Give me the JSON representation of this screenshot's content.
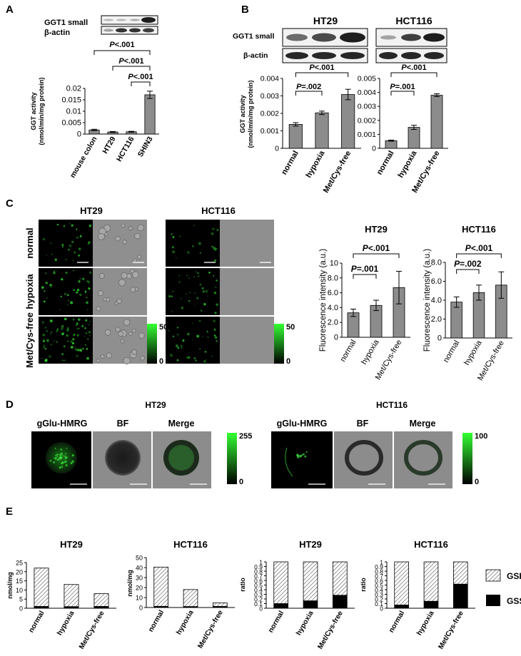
{
  "panels": {
    "A": "A",
    "B": "B",
    "C": "C",
    "D": "D",
    "E": "E"
  },
  "panel_A": {
    "blot_labels": [
      "GGT1 small",
      "β-actin"
    ],
    "pvalues": [
      "P<.001",
      "P<.001",
      "P<.001"
    ]
  },
  "panel_B": {
    "cell_lines": [
      "HT29",
      "HCT116"
    ],
    "blot_labels": [
      "GGT1 small",
      "β-actin"
    ],
    "pvalues_ht29": [
      "P<.001",
      "P=.002"
    ],
    "pvalues_hct116": [
      "P<.001",
      "P=.001"
    ]
  },
  "panel_C": {
    "titles": [
      "HT29",
      "HCT116"
    ],
    "row_labels": [
      "normal",
      "hypoxia",
      "Met/Cys-free"
    ],
    "scale_max": "50",
    "scale_min": "0",
    "chart_titles": [
      "HT29",
      "HCT116"
    ],
    "pvalues_ht29": [
      "P<.001",
      "P=.001"
    ],
    "pvalues_hct116": [
      "P<.001",
      "P=.002"
    ]
  },
  "panel_D": {
    "titles": [
      "HT29",
      "HCT116"
    ],
    "column_labels": [
      "gGlu-HMRG",
      "BF",
      "Merge"
    ],
    "scale_max_ht29": "255",
    "scale_max_hct116": "100",
    "scale_min": "0"
  },
  "panel_E": {
    "legend": [
      "GSH",
      "GSSG"
    ]
  },
  "colors": {
    "bar": "#8c8c8c",
    "gssg": "#000000",
    "fluorescence": "#33ff33"
  },
  "chart_data": [
    {
      "id": "A",
      "type": "bar",
      "categories": [
        "mouse colon",
        "HT29",
        "HCT116",
        "SHIN3"
      ],
      "values": [
        0.0018,
        0.0009,
        0.001,
        0.0172
      ],
      "errors": [
        0.0003,
        0.0002,
        0.0002,
        0.0016
      ],
      "ylabel": "GGT activity (nmol/min/mg protein)",
      "ylim": [
        0,
        0.02
      ],
      "yticks": [
        "0",
        "0.005",
        "0.01",
        "0.015",
        "0.02"
      ]
    },
    {
      "id": "B-HT29",
      "type": "bar",
      "categories": [
        "normal",
        "hypoxia",
        "Met/Cys-free"
      ],
      "values": [
        0.00137,
        0.00203,
        0.00308
      ],
      "errors": [
        0.0001,
        0.0001,
        0.0003
      ],
      "ylabel": "GGT activity (nmol/min/mg protein)",
      "ylim": [
        0,
        0.004
      ],
      "yticks": [
        "0",
        "0.001",
        "0.002",
        "0.003",
        "0.004"
      ]
    },
    {
      "id": "B-HCT116",
      "type": "bar",
      "categories": [
        "normal",
        "hypoxia",
        "Met/Cys-free"
      ],
      "values": [
        0.00055,
        0.0015,
        0.0038
      ],
      "errors": [
        4e-05,
        0.00015,
        0.0001
      ],
      "ylim": [
        0,
        0.005
      ],
      "yticks": [
        "0",
        "0.001",
        "0.002",
        "0.003",
        "0.004",
        "0.005"
      ]
    },
    {
      "id": "C-HT29",
      "type": "bar",
      "title": "HT29",
      "categories": [
        "normal",
        "hypoxia",
        "Met/Cys-free"
      ],
      "values": [
        3.3,
        4.3,
        6.7
      ],
      "errors": [
        0.5,
        0.7,
        2.2
      ],
      "ylabel": "Fluorescence intensity (a.u.)",
      "ylim": [
        0,
        10
      ],
      "yticks": [
        "0",
        "2.0",
        "4.0",
        "6.0",
        "8.0",
        "10"
      ]
    },
    {
      "id": "C-HCT116",
      "type": "bar",
      "title": "HCT116",
      "categories": [
        "normal",
        "hypoxia",
        "Met/Cys-free"
      ],
      "values": [
        3.8,
        4.8,
        5.6
      ],
      "errors": [
        0.55,
        0.8,
        1.4
      ],
      "ylabel": "Fluorescence intensity (a.u.)",
      "ylim": [
        0,
        8
      ],
      "yticks": [
        "0",
        "2.0",
        "4.0",
        "6.0",
        "8.0"
      ]
    },
    {
      "id": "E-HT29-nmol",
      "type": "bar",
      "title": "HT29",
      "categories": [
        "normal",
        "hypoxia",
        "Met/Cys-free"
      ],
      "series": [
        {
          "name": "GSSG",
          "values": [
            1.0,
            0.9,
            1.0
          ]
        },
        {
          "name": "GSH",
          "values": [
            21.0,
            12.1,
            7.0
          ]
        }
      ],
      "ylabel": "nmol/mg",
      "ylim": [
        0,
        25
      ],
      "yticks": [
        "0",
        "5",
        "10",
        "15",
        "20",
        "25"
      ]
    },
    {
      "id": "E-HCT116-nmol",
      "type": "bar",
      "title": "HCT116",
      "categories": [
        "normal",
        "hypoxia",
        "Met/Cys-free"
      ],
      "series": [
        {
          "name": "GSSG",
          "values": [
            1.2,
            1.0,
            1.1
          ]
        },
        {
          "name": "GSH",
          "values": [
            39.3,
            17.0,
            3.6
          ]
        }
      ],
      "ylabel": "nmol/mg",
      "ylim": [
        0,
        50
      ],
      "yticks": [
        "0",
        "10",
        "20",
        "30",
        "40",
        "50"
      ]
    },
    {
      "id": "E-HT29-ratio",
      "type": "bar",
      "title": "HT29",
      "categories": [
        "normal",
        "hypoxia",
        "Met/Cys-free"
      ],
      "series": [
        {
          "name": "GSSG",
          "values": [
            0.1,
            0.16,
            0.28
          ]
        },
        {
          "name": "GSH",
          "values": [
            0.9,
            0.84,
            0.72
          ]
        }
      ],
      "ylabel": "ratio",
      "ylim": [
        0,
        1
      ],
      "yticks": [
        "0",
        "0.1",
        "0.2",
        "0.3",
        "0.4",
        "0.5",
        "0.6",
        "0.7",
        "0.8",
        "0.9",
        "1"
      ]
    },
    {
      "id": "E-HCT116-ratio",
      "type": "bar",
      "title": "HCT116",
      "categories": [
        "normal",
        "hypoxia",
        "Met/Cys-free"
      ],
      "series": [
        {
          "name": "GSSG",
          "values": [
            0.07,
            0.15,
            0.52
          ]
        },
        {
          "name": "GSH",
          "values": [
            0.93,
            0.85,
            0.48
          ]
        }
      ],
      "ylabel": "ratio",
      "ylim": [
        0,
        1
      ],
      "yticks": [
        "0",
        "0.1",
        "0.2",
        "0.3",
        "0.4",
        "0.5",
        "0.6",
        "0.7",
        "0.8",
        "0.9",
        "1"
      ]
    }
  ]
}
